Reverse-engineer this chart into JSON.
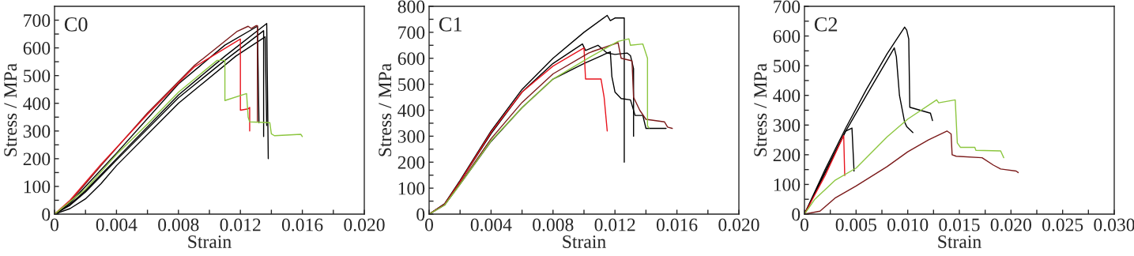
{
  "chart_data": [
    {
      "type": "line",
      "title": "C0",
      "xlabel": "Strain",
      "ylabel": "Stress / MPa",
      "xlim": [
        0,
        0.02
      ],
      "ylim": [
        0,
        750
      ],
      "xticks": [
        0,
        {
          "value": 0.002,
          "label": null
        },
        0.004,
        {
          "value": 0.006,
          "label": null
        },
        0.008,
        {
          "value": 0.01,
          "label": null
        },
        0.012,
        {
          "value": 0.014,
          "label": null
        },
        0.016,
        {
          "value": 0.018,
          "label": null
        },
        {
          "value": 0.02,
          "label": "0.020"
        }
      ],
      "yticks": [
        0,
        {
          "value": 50,
          "label": null
        },
        100,
        {
          "value": 150,
          "label": null
        },
        200,
        {
          "value": 250,
          "label": null
        },
        300,
        {
          "value": 350,
          "label": null
        },
        400,
        {
          "value": 450,
          "label": null
        },
        500,
        {
          "value": 550,
          "label": null
        },
        600,
        {
          "value": 650,
          "label": null
        },
        700
      ],
      "series": [
        {
          "color": "#000000",
          "x": [
            0,
            0.001,
            0.002,
            0.004,
            0.008,
            0.011,
            0.0137,
            0.0138
          ],
          "values": [
            0,
            35,
            85,
            200,
            430,
            570,
            688,
            200
          ]
        },
        {
          "color": "#000000",
          "x": [
            0,
            0.001,
            0.002,
            0.004,
            0.008,
            0.011,
            0.0135,
            0.0135
          ],
          "values": [
            0,
            32,
            80,
            195,
            420,
            555,
            662,
            280
          ]
        },
        {
          "color": "#000000",
          "x": [
            0,
            0.001,
            0.002,
            0.003,
            0.004,
            0.008,
            0.0117,
            0.0136,
            0.0137
          ],
          "values": [
            0,
            20,
            55,
            110,
            175,
            400,
            570,
            640,
            320
          ]
        },
        {
          "color": "#000000",
          "x": [
            0,
            0.001,
            0.002,
            0.004,
            0.008,
            0.011,
            0.0131,
            0.0132
          ],
          "values": [
            0,
            40,
            100,
            220,
            470,
            610,
            678,
            330
          ]
        },
        {
          "color": "#7b1a1a",
          "x": [
            0,
            0.001,
            0.002,
            0.003,
            0.006,
            0.009,
            0.0118,
            0.0125,
            0.0127,
            0.013,
            0.0131,
            0.0131
          ],
          "values": [
            0,
            45,
            110,
            175,
            365,
            535,
            660,
            678,
            670,
            680,
            680,
            335
          ]
        },
        {
          "color": "#e8141e",
          "x": [
            0,
            0.001,
            0.002,
            0.003,
            0.006,
            0.009,
            0.012,
            0.012,
            0.0125,
            0.0126,
            0.0126
          ],
          "values": [
            0,
            50,
            115,
            180,
            360,
            530,
            632,
            375,
            380,
            385,
            300
          ]
        },
        {
          "color": "#8cc63f",
          "x": [
            0,
            0.002,
            0.004,
            0.006,
            0.008,
            0.0105,
            0.011,
            0.011,
            0.0124,
            0.0125,
            0.0126,
            0.0139,
            0.014,
            0.0142,
            0.0159,
            0.016
          ],
          "values": [
            0,
            90,
            215,
            325,
            440,
            555,
            555,
            410,
            435,
            350,
            333,
            330,
            290,
            283,
            288,
            280
          ]
        }
      ]
    },
    {
      "type": "line",
      "title": "C1",
      "xlabel": "Strain",
      "ylabel": "Stress / MPa",
      "xlim": [
        0,
        0.02
      ],
      "ylim": [
        0,
        800
      ],
      "xticks": [
        0,
        {
          "value": 0.002,
          "label": null
        },
        0.004,
        {
          "value": 0.006,
          "label": null
        },
        0.008,
        {
          "value": 0.01,
          "label": null
        },
        0.012,
        {
          "value": 0.014,
          "label": null
        },
        0.016,
        {
          "value": 0.018,
          "label": null
        },
        {
          "value": 0.02,
          "label": "0.020"
        }
      ],
      "yticks": [
        0,
        {
          "value": 50,
          "label": null
        },
        100,
        {
          "value": 150,
          "label": null
        },
        200,
        {
          "value": 250,
          "label": null
        },
        300,
        {
          "value": 350,
          "label": null
        },
        400,
        {
          "value": 450,
          "label": null
        },
        500,
        {
          "value": 550,
          "label": null
        },
        600,
        {
          "value": 650,
          "label": null
        },
        700,
        {
          "value": 750,
          "label": null
        },
        800
      ],
      "series": [
        {
          "color": "#000000",
          "x": [
            0,
            0.001,
            0.002,
            0.004,
            0.006,
            0.008,
            0.01,
            0.0115,
            0.0117,
            0.012,
            0.0126,
            0.0126
          ],
          "values": [
            0,
            40,
            130,
            320,
            480,
            600,
            700,
            765,
            745,
            755,
            755,
            200
          ]
        },
        {
          "color": "#000000",
          "x": [
            0,
            0.001,
            0.002,
            0.004,
            0.006,
            0.008,
            0.0099,
            0.0101,
            0.0109,
            0.0115,
            0.0117,
            0.0118,
            0.012,
            0.0124,
            0.013,
            0.0133,
            0.0138,
            0.014,
            0.0153
          ],
          "values": [
            0,
            38,
            125,
            310,
            470,
            580,
            655,
            630,
            650,
            620,
            625,
            530,
            470,
            445,
            440,
            380,
            380,
            330,
            330
          ]
        },
        {
          "color": "#000000",
          "x": [
            0,
            0.001,
            0.002,
            0.004,
            0.006,
            0.008,
            0.01,
            0.0115,
            0.012,
            0.0128,
            0.013,
            0.0132,
            0.0132
          ],
          "values": [
            0,
            35,
            115,
            280,
            410,
            520,
            580,
            620,
            615,
            620,
            610,
            560,
            300
          ]
        },
        {
          "color": "#e8141e",
          "x": [
            0,
            0.001,
            0.002,
            0.004,
            0.006,
            0.008,
            0.01,
            0.0101,
            0.0111,
            0.0113,
            0.0115
          ],
          "values": [
            0,
            38,
            125,
            315,
            470,
            570,
            640,
            520,
            520,
            450,
            320
          ]
        },
        {
          "color": "#7b1a1a",
          "x": [
            0,
            0.001,
            0.002,
            0.004,
            0.006,
            0.008,
            0.0103,
            0.0105,
            0.0122,
            0.0124,
            0.0131,
            0.0132,
            0.0136,
            0.014,
            0.0152,
            0.0154,
            0.0157
          ],
          "values": [
            0,
            36,
            118,
            290,
            430,
            540,
            620,
            625,
            660,
            600,
            590,
            450,
            400,
            365,
            355,
            335,
            330
          ]
        },
        {
          "color": "#8cc63f",
          "x": [
            0,
            0.001,
            0.002,
            0.004,
            0.006,
            0.008,
            0.0104,
            0.0122,
            0.0129,
            0.013,
            0.0138,
            0.0141,
            0.0141,
            0.0142
          ],
          "values": [
            0,
            35,
            115,
            282,
            410,
            520,
            605,
            665,
            675,
            650,
            655,
            600,
            340,
            332
          ]
        }
      ]
    },
    {
      "type": "line",
      "title": "C2",
      "xlabel": "Strain",
      "ylabel": "Stress / MPa",
      "xlim": [
        0,
        0.03
      ],
      "ylim": [
        0,
        700
      ],
      "xticks": [
        0,
        {
          "value": 0.0025,
          "label": null
        },
        0.005,
        {
          "value": 0.0075,
          "label": null
        },
        {
          "value": 0.01,
          "label": "0.010"
        },
        {
          "value": 0.0125,
          "label": null
        },
        0.015,
        {
          "value": 0.0175,
          "label": null
        },
        {
          "value": 0.02,
          "label": "0.020"
        },
        {
          "value": 0.0225,
          "label": null
        },
        0.025,
        {
          "value": 0.0275,
          "label": null
        },
        {
          "value": 0.03,
          "label": "0.030"
        }
      ],
      "yticks": [
        0,
        {
          "value": 50,
          "label": null
        },
        100,
        {
          "value": 150,
          "label": null
        },
        200,
        {
          "value": 250,
          "label": null
        },
        300,
        {
          "value": 350,
          "label": null
        },
        400,
        {
          "value": 450,
          "label": null
        },
        500,
        {
          "value": 550,
          "label": null
        },
        600,
        {
          "value": 650,
          "label": null
        },
        700
      ],
      "series": [
        {
          "color": "#000000",
          "x": [
            0,
            0.002,
            0.004,
            0.006,
            0.008,
            0.0097,
            0.0099,
            0.0101,
            0.0102,
            0.0112,
            0.0122,
            0.0124
          ],
          "values": [
            0,
            150,
            290,
            420,
            540,
            630,
            620,
            590,
            360,
            350,
            340,
            315
          ]
        },
        {
          "color": "#000000",
          "x": [
            0,
            0.002,
            0.004,
            0.006,
            0.0087,
            0.0089,
            0.0092,
            0.0097,
            0.0099,
            0.0105
          ],
          "values": [
            0,
            140,
            280,
            400,
            560,
            530,
            400,
            310,
            295,
            275
          ]
        },
        {
          "color": "#000000",
          "x": [
            0,
            0.002,
            0.004,
            0.0046,
            0.0048
          ],
          "values": [
            0,
            140,
            280,
            290,
            145
          ]
        },
        {
          "color": "#e8141e",
          "x": [
            0,
            0.002,
            0.0038,
            0.0039
          ],
          "values": [
            0,
            130,
            265,
            130
          ]
        },
        {
          "color": "#8cc63f",
          "x": [
            0,
            0.001,
            0.003,
            0.005,
            0.008,
            0.01,
            0.0128,
            0.013,
            0.0146,
            0.0148,
            0.0151,
            0.0165,
            0.0166,
            0.019,
            0.0193
          ],
          "values": [
            0,
            50,
            115,
            155,
            260,
            320,
            385,
            375,
            385,
            240,
            225,
            225,
            215,
            213,
            190
          ]
        },
        {
          "color": "#7b1a1a",
          "x": [
            0,
            0.0015,
            0.003,
            0.005,
            0.008,
            0.01,
            0.012,
            0.0138,
            0.0142,
            0.0143,
            0.0147,
            0.0172,
            0.0183,
            0.019,
            0.0205,
            0.0207
          ],
          "values": [
            0,
            10,
            55,
            95,
            160,
            210,
            250,
            280,
            270,
            200,
            195,
            190,
            165,
            152,
            145,
            140
          ]
        }
      ]
    }
  ]
}
